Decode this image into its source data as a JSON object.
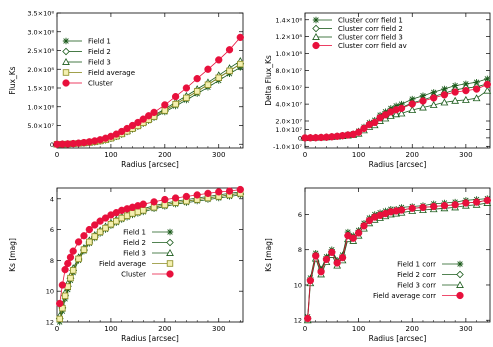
{
  "chart_data": [
    {
      "type": "line",
      "xlabel": "Radius [arcsec]",
      "ylabel": "Flux_Ks",
      "xlim": [
        0,
        345
      ],
      "ylim": [
        -10000000.0,
        350000000.0
      ],
      "xticks": [
        {
          "v": 0,
          "label": "0"
        },
        {
          "v": 100,
          "label": "100"
        },
        {
          "v": 200,
          "label": "200"
        },
        {
          "v": 300,
          "label": "300"
        }
      ],
      "yticks": [
        {
          "v": 0,
          "label": "0"
        },
        {
          "v": 50000000,
          "label": "5.0×10⁷"
        },
        {
          "v": 100000000,
          "label": "1.0×10⁸"
        },
        {
          "v": 150000000,
          "label": "1.5×10⁸"
        },
        {
          "v": 200000000,
          "label": "2.0×10⁸"
        },
        {
          "v": 250000000,
          "label": "2.5×10⁸"
        },
        {
          "v": 300000000,
          "label": "3.0×10⁸"
        },
        {
          "v": 350000000,
          "label": "3.5×10⁸"
        }
      ],
      "legend": "top-left",
      "x": [
        0,
        10,
        20,
        30,
        40,
        50,
        60,
        70,
        80,
        90,
        100,
        110,
        120,
        130,
        140,
        150,
        160,
        170,
        180,
        200,
        220,
        240,
        260,
        280,
        300,
        320,
        340
      ],
      "series": [
        {
          "name": "Field 1",
          "marker": "asterisk",
          "color": "#1a5a1a",
          "values": [
            0.0,
            0.2,
            0.6,
            1.2,
            2.0,
            3.0,
            4.3,
            6.0,
            8.0,
            11.0,
            15.0,
            20.0,
            26.0,
            33.0,
            40.0,
            47.0,
            55.0,
            63.0,
            71.0,
            86.0,
            102.0,
            118.0,
            135.0,
            152.0,
            170.0,
            188.0,
            205.0
          ]
        },
        {
          "name": "Field 2",
          "marker": "diamond",
          "color": "#1a5a1a",
          "values": [
            0.0,
            0.2,
            0.7,
            1.3,
            2.2,
            3.2,
            4.6,
            6.4,
            8.6,
            11.8,
            16.0,
            21.0,
            27.5,
            34.5,
            41.5,
            49.0,
            57.0,
            65.5,
            74.0,
            90.0,
            107.0,
            124.0,
            141.0,
            159.0,
            178.0,
            196.0,
            214.0
          ]
        },
        {
          "name": "Field 3",
          "marker": "triangle",
          "color": "#1a5a1a",
          "values": [
            0.0,
            0.3,
            0.7,
            1.4,
            2.3,
            3.4,
            4.9,
            6.8,
            9.2,
            12.5,
            17.0,
            22.5,
            29.0,
            36.0,
            43.5,
            51.0,
            59.5,
            68.0,
            77.0,
            94.0,
            112.0,
            129.0,
            147.0,
            165.0,
            184.0,
            203.0,
            222.0
          ]
        },
        {
          "name": "Field average",
          "marker": "square",
          "color": "#8a8a20",
          "values": [
            0.0,
            0.2,
            0.7,
            1.3,
            2.2,
            3.2,
            4.6,
            6.4,
            8.6,
            11.8,
            16.0,
            21.2,
            27.5,
            34.5,
            41.7,
            49.0,
            57.2,
            65.5,
            74.0,
            90.0,
            107.0,
            123.7,
            141.0,
            158.7,
            177.3,
            195.7,
            213.7
          ]
        },
        {
          "name": "Cluster",
          "marker": "dot",
          "color": "#e8103c",
          "values": [
            0.0,
            0.3,
            0.9,
            1.8,
            3.0,
            4.5,
            6.5,
            9.0,
            12.0,
            16.0,
            21.0,
            27.0,
            34.0,
            42.0,
            50.0,
            58.0,
            67.0,
            76.0,
            85.0,
            105.0,
            127.0,
            150.0,
            175.0,
            200.0,
            225.0,
            252.0,
            285.0
          ]
        }
      ],
      "value_unit": "1e6"
    },
    {
      "type": "line",
      "xlabel": "Radius [arcsec]",
      "ylabel": "Delta Flux_Ks",
      "xlim": [
        0,
        345
      ],
      "ylim": [
        -12000000.0,
        148000000.0
      ],
      "xticks": [
        {
          "v": 0,
          "label": "0"
        },
        {
          "v": 100,
          "label": "100"
        },
        {
          "v": 200,
          "label": "200"
        },
        {
          "v": 300,
          "label": "300"
        }
      ],
      "yticks": [
        {
          "v": -10000000,
          "label": "-1.0×10⁷"
        },
        {
          "v": 0,
          "label": "0"
        },
        {
          "v": 10000000,
          "label": "1.0×10⁷"
        },
        {
          "v": 20000000,
          "label": "2.0×10⁷"
        },
        {
          "v": 40000000,
          "label": "4.0×10⁷"
        },
        {
          "v": 60000000,
          "label": "6.0×10⁷"
        },
        {
          "v": 80000000,
          "label": "8.0×10⁷"
        },
        {
          "v": 100000000,
          "label": "1.0×10⁸"
        },
        {
          "v": 120000000,
          "label": "1.2×10⁸"
        },
        {
          "v": 140000000,
          "label": "1.4×10⁸"
        }
      ],
      "legend": "top-left",
      "x": [
        0,
        10,
        20,
        30,
        40,
        50,
        60,
        70,
        80,
        90,
        100,
        110,
        120,
        130,
        140,
        150,
        160,
        170,
        180,
        200,
        220,
        240,
        260,
        280,
        300,
        320,
        340
      ],
      "series": [
        {
          "name": "Cluster corr field 1",
          "marker": "asterisk",
          "color": "#1a5a1a",
          "values": [
            0.0,
            0.1,
            0.3,
            0.6,
            1.0,
            1.5,
            2.2,
            3.0,
            4.0,
            5.0,
            8.0,
            13.0,
            18.0,
            21.0,
            27.0,
            31.0,
            35.0,
            38.0,
            40.0,
            46.0,
            50.0,
            54.0,
            58.0,
            62.0,
            64.0,
            66.0,
            70.0
          ]
        },
        {
          "name": "Cluster corr field 2",
          "marker": "diamond",
          "color": "#1a5a1a",
          "values": [
            0.0,
            0.1,
            0.2,
            0.5,
            0.8,
            1.3,
            1.9,
            2.6,
            3.4,
            4.2,
            7.0,
            11.5,
            16.0,
            19.0,
            24.5,
            28.0,
            31.5,
            34.0,
            36.0,
            41.5,
            45.0,
            49.0,
            53.0,
            57.0,
            59.0,
            60.5,
            64.0
          ]
        },
        {
          "name": "Cluster corr field 3",
          "marker": "triangle",
          "color": "#1a5a1a",
          "values": [
            0.0,
            0.0,
            0.2,
            0.4,
            0.7,
            1.1,
            1.6,
            2.2,
            2.8,
            3.5,
            5.0,
            9.0,
            13.0,
            15.0,
            20.0,
            23.0,
            26.0,
            28.0,
            29.0,
            33.0,
            36.0,
            39.0,
            42.0,
            44.0,
            45.0,
            47.0,
            56.0
          ]
        },
        {
          "name": "Cluster corr field av",
          "marker": "dot",
          "color": "#e8103c",
          "values": [
            0.0,
            0.1,
            0.2,
            0.5,
            0.8,
            1.3,
            1.9,
            2.6,
            3.4,
            4.2,
            6.7,
            11.2,
            15.7,
            18.3,
            23.8,
            27.3,
            30.8,
            33.3,
            35.0,
            40.2,
            43.7,
            47.3,
            51.0,
            54.3,
            56.0,
            57.8,
            63.3
          ]
        }
      ],
      "value_unit": "1e6"
    },
    {
      "type": "line",
      "xlabel": "Radius [arcsec]",
      "ylabel": "Ks [mag]",
      "xlim": [
        0,
        345
      ],
      "ylim": [
        12.0,
        3.3
      ],
      "inverted_y": true,
      "xticks": [
        {
          "v": 0,
          "label": "0"
        },
        {
          "v": 100,
          "label": "100"
        },
        {
          "v": 200,
          "label": "200"
        },
        {
          "v": 300,
          "label": "300"
        }
      ],
      "yticks": [
        {
          "v": 4,
          "label": "4"
        },
        {
          "v": 6,
          "label": "6"
        },
        {
          "v": 8,
          "label": "8"
        },
        {
          "v": 10,
          "label": "10"
        },
        {
          "v": 12,
          "label": "12"
        }
      ],
      "legend": "bottom-right",
      "x": [
        5,
        10,
        15,
        20,
        25,
        30,
        40,
        50,
        60,
        70,
        80,
        90,
        100,
        110,
        120,
        130,
        140,
        150,
        160,
        180,
        200,
        220,
        240,
        260,
        280,
        300,
        320,
        340
      ],
      "series": [
        {
          "name": "Field 1",
          "marker": "asterisk",
          "color": "#1a5a1a",
          "values": [
            12.0,
            11.3,
            10.5,
            9.9,
            9.3,
            8.8,
            8.0,
            7.4,
            6.9,
            6.55,
            6.25,
            6.0,
            5.75,
            5.55,
            5.35,
            5.2,
            5.05,
            4.95,
            4.85,
            4.65,
            4.5,
            4.35,
            4.25,
            4.15,
            4.05,
            3.95,
            3.85,
            3.75
          ]
        },
        {
          "name": "Field 2",
          "marker": "diamond",
          "color": "#1a5a1a",
          "values": [
            11.8,
            11.1,
            10.3,
            9.7,
            9.15,
            8.65,
            7.9,
            7.3,
            6.8,
            6.45,
            6.15,
            5.9,
            5.65,
            5.45,
            5.25,
            5.1,
            4.95,
            4.85,
            4.75,
            4.55,
            4.4,
            4.25,
            4.15,
            4.05,
            3.95,
            3.85,
            3.75,
            3.65
          ]
        },
        {
          "name": "Field 3",
          "marker": "triangle",
          "color": "#1a5a1a",
          "values": [
            11.6,
            10.9,
            10.1,
            9.5,
            9.0,
            8.5,
            7.8,
            7.2,
            6.7,
            6.35,
            6.05,
            5.8,
            5.55,
            5.35,
            5.15,
            5.0,
            4.85,
            4.75,
            4.65,
            4.45,
            4.3,
            4.15,
            4.05,
            3.95,
            3.85,
            3.75,
            3.65,
            3.55
          ]
        },
        {
          "name": "Field average",
          "marker": "square",
          "color": "#8a8a20",
          "values": [
            11.8,
            11.1,
            10.3,
            9.7,
            9.15,
            8.65,
            7.9,
            7.3,
            6.8,
            6.45,
            6.15,
            5.9,
            5.65,
            5.45,
            5.25,
            5.1,
            4.95,
            4.85,
            4.75,
            4.55,
            4.4,
            4.25,
            4.15,
            4.05,
            3.95,
            3.85,
            3.75,
            3.65
          ]
        },
        {
          "name": "Cluster",
          "marker": "dot",
          "color": "#e8103c",
          "values": [
            10.8,
            9.6,
            8.6,
            8.2,
            7.8,
            7.4,
            6.8,
            6.4,
            6.0,
            5.7,
            5.45,
            5.25,
            5.05,
            4.9,
            4.75,
            4.65,
            4.55,
            4.45,
            4.35,
            4.2,
            4.05,
            3.95,
            3.85,
            3.75,
            3.65,
            3.55,
            3.5,
            3.4
          ]
        }
      ]
    },
    {
      "type": "line",
      "xlabel": "Radius [arcsec]",
      "ylabel": "Ks [mag]",
      "xlim": [
        0,
        345
      ],
      "ylim": [
        12.1,
        4.5
      ],
      "inverted_y": true,
      "xticks": [
        {
          "v": 0,
          "label": "0"
        },
        {
          "v": 100,
          "label": "100"
        },
        {
          "v": 200,
          "label": "200"
        },
        {
          "v": 300,
          "label": "300"
        }
      ],
      "yticks": [
        {
          "v": 4,
          "label": "4"
        },
        {
          "v": 6,
          "label": "6"
        },
        {
          "v": 8,
          "label": "8"
        },
        {
          "v": 10,
          "label": "10"
        },
        {
          "v": 12,
          "label": "12"
        }
      ],
      "legend": "bottom-right",
      "x": [
        5,
        10,
        20,
        30,
        40,
        50,
        60,
        70,
        80,
        90,
        100,
        110,
        120,
        130,
        140,
        150,
        160,
        170,
        180,
        200,
        220,
        240,
        260,
        280,
        300,
        320,
        340
      ],
      "series": [
        {
          "name": "Field 1 corr",
          "marker": "asterisk",
          "color": "#1a5a1a",
          "values": [
            11.8,
            9.6,
            8.2,
            9.1,
            8.4,
            8.0,
            8.6,
            8.3,
            7.0,
            7.2,
            6.9,
            6.5,
            6.2,
            6.0,
            5.9,
            5.8,
            5.7,
            5.7,
            5.6,
            5.55,
            5.5,
            5.4,
            5.35,
            5.3,
            5.2,
            5.15,
            5.1
          ]
        },
        {
          "name": "Field 2 corr",
          "marker": "diamond",
          "color": "#1a5a1a",
          "values": [
            11.9,
            9.7,
            8.3,
            9.2,
            8.5,
            8.1,
            8.7,
            8.45,
            7.2,
            7.35,
            7.05,
            6.65,
            6.35,
            6.15,
            6.05,
            5.95,
            5.85,
            5.8,
            5.75,
            5.65,
            5.6,
            5.55,
            5.5,
            5.45,
            5.35,
            5.3,
            5.2
          ]
        },
        {
          "name": "Field 3 corr",
          "marker": "triangle",
          "color": "#1a5a1a",
          "values": [
            12.0,
            9.9,
            8.5,
            9.4,
            8.7,
            8.3,
            8.9,
            8.6,
            7.4,
            7.5,
            7.2,
            6.8,
            6.5,
            6.3,
            6.2,
            6.1,
            6.0,
            5.95,
            5.9,
            5.8,
            5.75,
            5.7,
            5.65,
            5.6,
            5.5,
            5.45,
            5.35
          ]
        },
        {
          "name": "Field average corr",
          "marker": "dot",
          "color": "#e8103c",
          "values": [
            11.9,
            9.75,
            8.35,
            9.25,
            8.55,
            8.15,
            8.75,
            8.45,
            7.2,
            7.35,
            7.05,
            6.65,
            6.35,
            6.15,
            6.05,
            5.95,
            5.85,
            5.8,
            5.75,
            5.65,
            5.6,
            5.55,
            5.5,
            5.45,
            5.35,
            5.3,
            5.2
          ]
        }
      ]
    }
  ]
}
